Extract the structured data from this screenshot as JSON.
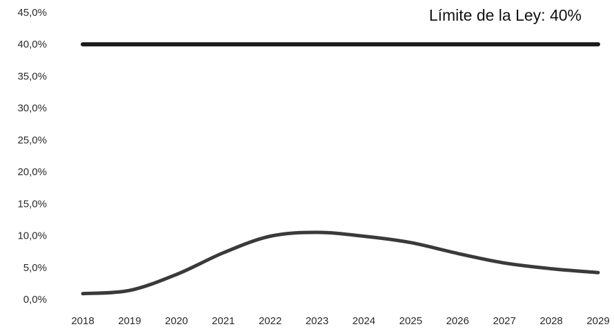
{
  "chart_data": {
    "type": "line",
    "title": "",
    "xlabel": "",
    "ylabel": "",
    "categories": [
      "2018",
      "2019",
      "2020",
      "2021",
      "2022",
      "2023",
      "2024",
      "2025",
      "2026",
      "2027",
      "2028",
      "2029"
    ],
    "y_ticks": [
      "0,0%",
      "5,0%",
      "10,0%",
      "15,0%",
      "20,0%",
      "25,0%",
      "30,0%",
      "35,0%",
      "40,0%",
      "45,0%"
    ],
    "ylim": [
      0,
      45
    ],
    "grid": false,
    "legend": "none",
    "series": [
      {
        "values": [
          40.0,
          40.0,
          40.0,
          40.0,
          40.0,
          40.0,
          40.0,
          40.0,
          40.0,
          40.0,
          40.0,
          40.0
        ],
        "color": "#1a1a1a"
      },
      {
        "values": [
          0.9,
          1.4,
          3.9,
          7.3,
          9.9,
          10.5,
          9.9,
          8.9,
          7.2,
          5.7,
          4.8,
          4.2
        ],
        "color": "#3a3a3a"
      }
    ],
    "annotations": [
      {
        "text": "Límite de la Ley: 40%"
      }
    ]
  }
}
